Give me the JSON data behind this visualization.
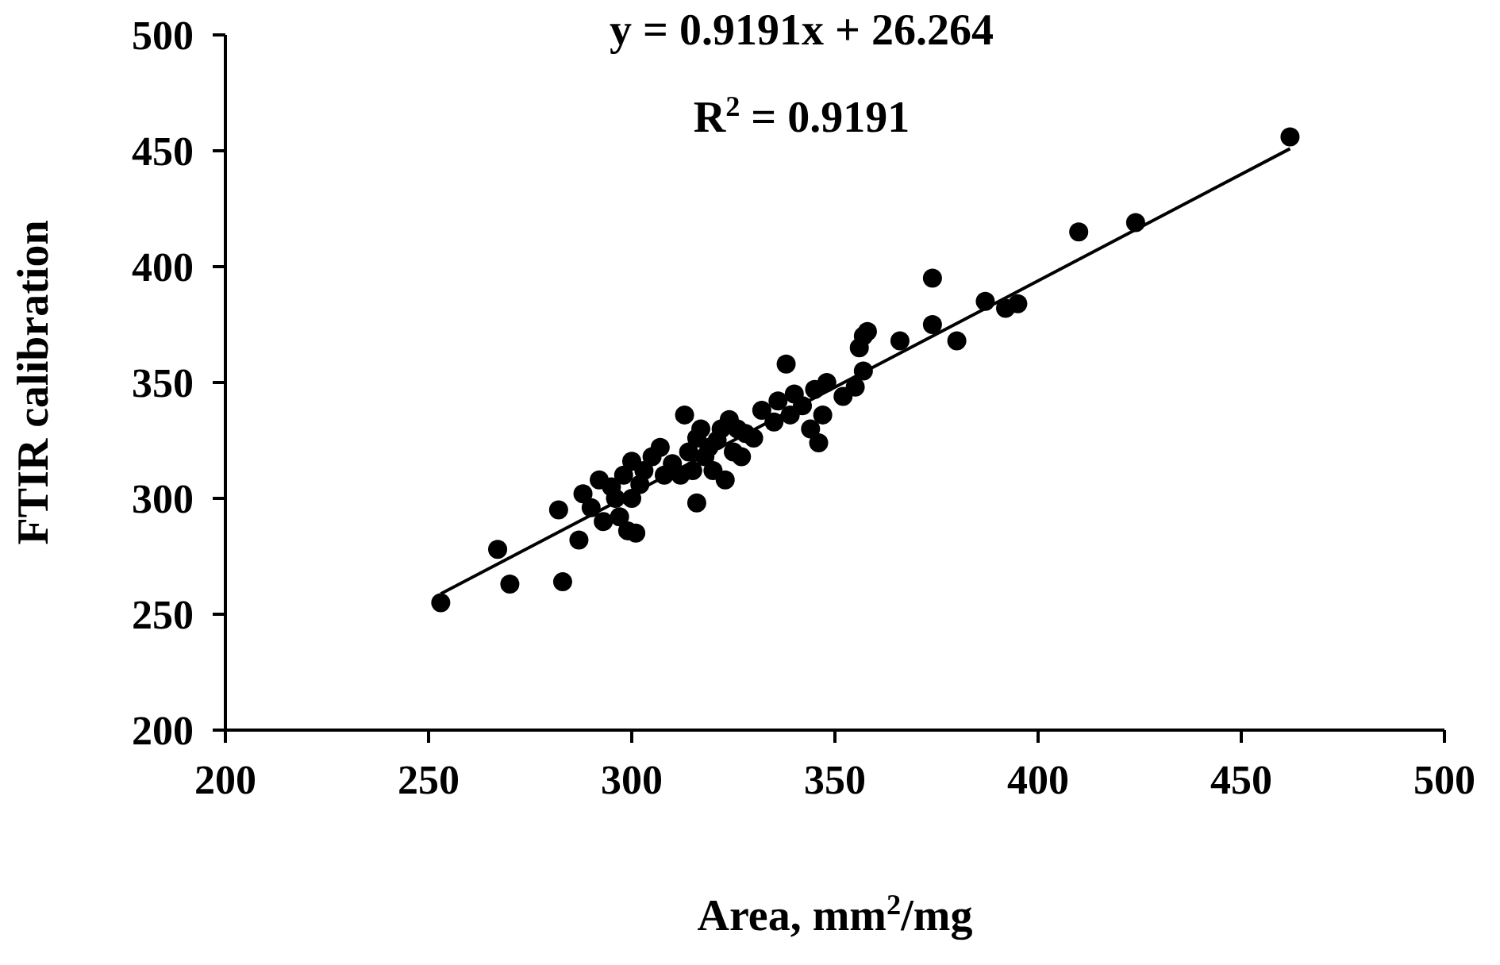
{
  "chart_data": {
    "type": "scatter",
    "xlabel": "Area, mm$^{2}$/mg",
    "ylabel": "FTIR calibration",
    "annotations": [
      "y = 0.9191x + 26.264",
      "R$^{2}$ = 0.9191"
    ],
    "xlim": [
      200,
      500
    ],
    "xticks": [
      200,
      250,
      300,
      350,
      400,
      450,
      500
    ],
    "ylim": [
      200,
      500
    ],
    "yticks": [
      200,
      250,
      300,
      350,
      400,
      450,
      500
    ],
    "grid": false,
    "marker": "circle",
    "series": [
      {
        "color": "#000000",
        "x": [
          253,
          267,
          270,
          282,
          283,
          287,
          288,
          290,
          292,
          293,
          295,
          296,
          297,
          298,
          299,
          300,
          300,
          301,
          302,
          303,
          305,
          307,
          308,
          310,
          312,
          313,
          314,
          315,
          316,
          316,
          317,
          318,
          319,
          320,
          321,
          322,
          323,
          324,
          325,
          326,
          327,
          328,
          330,
          332,
          335,
          336,
          338,
          339,
          340,
          342,
          344,
          345,
          346,
          347,
          348,
          352,
          355,
          356,
          357,
          357,
          358,
          366,
          374,
          374,
          380,
          387,
          392,
          395,
          410,
          424,
          462
        ],
        "values": [
          255,
          278,
          263,
          295,
          264,
          282,
          302,
          296,
          308,
          290,
          305,
          300,
          292,
          310,
          286,
          316,
          300,
          285,
          306,
          312,
          318,
          322,
          310,
          315,
          310,
          336,
          320,
          312,
          298,
          326,
          330,
          318,
          322,
          312,
          325,
          330,
          308,
          334,
          320,
          330,
          318,
          328,
          326,
          338,
          333,
          342,
          358,
          336,
          345,
          340,
          330,
          347,
          324,
          336,
          350,
          344,
          348,
          365,
          370,
          355,
          372,
          368,
          395,
          375,
          368,
          385,
          382,
          384,
          415,
          419,
          456
        ]
      },
      {
        "type": "line",
        "color": "#000000",
        "marker": "none",
        "line_style": "solid",
        "x": [
          253,
          462
        ],
        "values": [
          258.8,
          450.9
        ]
      }
    ]
  }
}
